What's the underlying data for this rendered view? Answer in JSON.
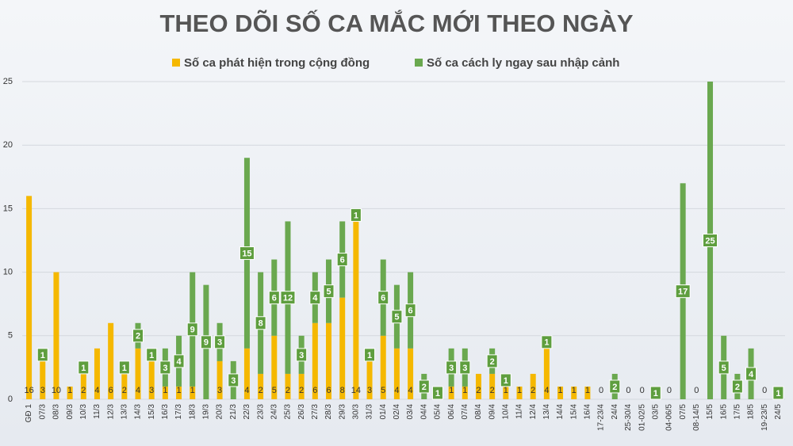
{
  "chart_data": {
    "type": "stacked_bar",
    "title": "THEO DÕI SỐ CA MẮC MỚI THEO NGÀY",
    "categories": [
      "GĐ 1",
      "07/3",
      "08/3",
      "09/3",
      "10/3",
      "11/3",
      "12/3",
      "13/3",
      "14/3",
      "15/3",
      "16/3",
      "17/3",
      "18/3",
      "19/3",
      "20/3",
      "21/3",
      "22/3",
      "23/3",
      "24/3",
      "25/3",
      "26/3",
      "27/3",
      "28/3",
      "29/3",
      "30/3",
      "31/3",
      "01/4",
      "02/4",
      "03/4",
      "04/4",
      "05/4",
      "06/4",
      "07/4",
      "08/4",
      "09/4",
      "10/4",
      "11/4",
      "12/4",
      "13/4",
      "14/4",
      "15/4",
      "16/4",
      "17-23/4",
      "24/4",
      "25-30/4",
      "01-02/5",
      "03/5",
      "04-06/5",
      "07/5",
      "08-14/5",
      "15/5",
      "16/5",
      "17/5",
      "18/5",
      "19-23/5",
      "24/5"
    ],
    "series": [
      {
        "name": "Số ca phát hiện trong cộng đồng",
        "color": "#f5b800",
        "values": [
          16,
          3,
          10,
          1,
          2,
          4,
          6,
          2,
          4,
          3,
          1,
          1,
          1,
          null,
          3,
          null,
          4,
          2,
          5,
          2,
          2,
          6,
          6,
          8,
          14,
          3,
          5,
          4,
          4,
          null,
          null,
          1,
          1,
          2,
          2,
          1,
          1,
          2,
          4,
          1,
          1,
          1,
          0,
          null,
          0,
          0,
          null,
          0,
          null,
          0,
          null,
          null,
          null,
          null,
          0,
          null
        ]
      },
      {
        "name": "Số ca cách ly ngay sau nhập cảnh",
        "color": "#6aa84f",
        "values": [
          null,
          1,
          null,
          null,
          1,
          null,
          null,
          1,
          2,
          1,
          3,
          4,
          9,
          9,
          3,
          3,
          15,
          8,
          6,
          12,
          3,
          4,
          5,
          6,
          1,
          1,
          6,
          5,
          6,
          2,
          1,
          3,
          3,
          null,
          2,
          1,
          null,
          null,
          1,
          null,
          null,
          null,
          null,
          2,
          null,
          null,
          1,
          null,
          17,
          null,
          25,
          5,
          2,
          4,
          null,
          1
        ]
      }
    ],
    "ylim": [
      0,
      25
    ],
    "yticks": [
      0,
      5,
      10,
      15,
      20,
      25
    ],
    "grid": true
  }
}
